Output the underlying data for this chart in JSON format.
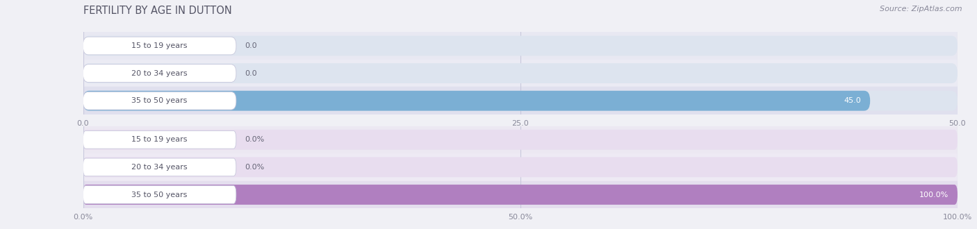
{
  "title": "FERTILITY BY AGE IN DUTTON",
  "source": "Source: ZipAtlas.com",
  "background_color": "#f0f0f5",
  "chart1": {
    "categories": [
      "15 to 19 years",
      "20 to 34 years",
      "35 to 50 years"
    ],
    "values": [
      0.0,
      0.0,
      45.0
    ],
    "xlim": [
      0,
      50
    ],
    "xticks": [
      0.0,
      25.0,
      50.0
    ],
    "xtick_labels": [
      "0.0",
      "25.0",
      "50.0"
    ],
    "bar_color": "#7bafd4",
    "bar_bg_color": "#dde4ef",
    "value_labels": [
      "0.0",
      "0.0",
      "45.0"
    ],
    "row_colors": [
      "#e8e8f2",
      "#ebebf4",
      "#e0e0ee"
    ]
  },
  "chart2": {
    "categories": [
      "15 to 19 years",
      "20 to 34 years",
      "35 to 50 years"
    ],
    "values": [
      0.0,
      0.0,
      100.0
    ],
    "xlim": [
      0,
      100
    ],
    "xticks": [
      0.0,
      50.0,
      100.0
    ],
    "xtick_labels": [
      "0.0%",
      "50.0%",
      "100.0%"
    ],
    "bar_color": "#b07fc0",
    "bar_bg_color": "#e8ddef",
    "value_labels": [
      "0.0%",
      "0.0%",
      "100.0%"
    ],
    "row_colors": [
      "#ece8f2",
      "#eeeaf4",
      "#e4deee"
    ]
  },
  "label_bg": "#ffffff",
  "label_border": "#c8c8dc",
  "grid_color": "#c8c8dc",
  "label_fontsize": 8.0,
  "value_fontsize": 8.0,
  "title_fontsize": 10.5,
  "tick_fontsize": 8.0,
  "source_fontsize": 8.0,
  "title_color": "#555566",
  "tick_color": "#888899",
  "source_color": "#888899",
  "label_text_color": "#555566",
  "value_color_inside": "#ffffff",
  "value_color_outside": "#666677"
}
